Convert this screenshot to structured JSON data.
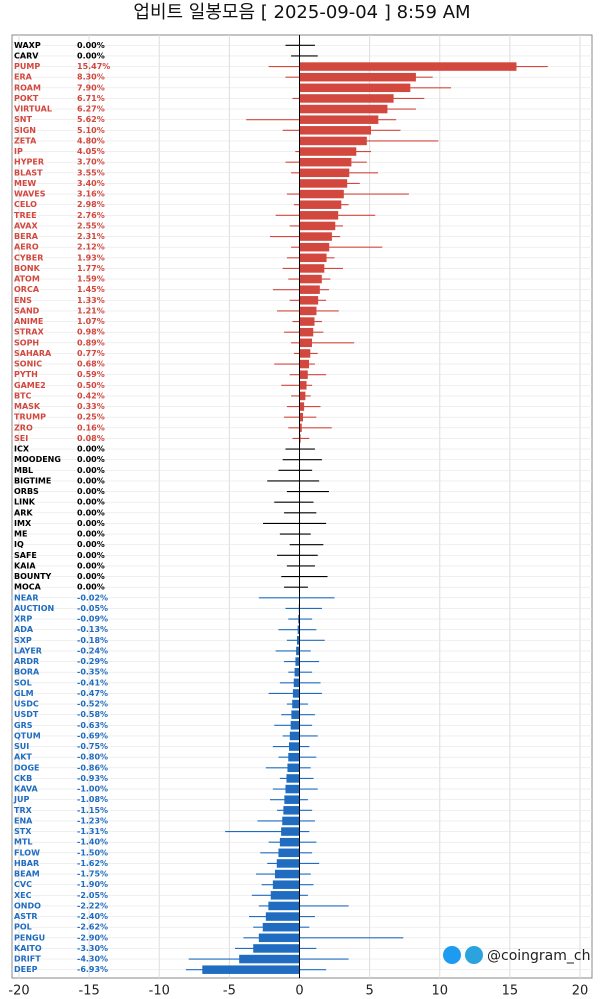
{
  "chart_data": {
    "type": "range-bar",
    "title": "업비트 일봉모음 [ 2025-09-04 ]  8:59 AM",
    "watermark": "@coingram_ch",
    "xlim": [
      -20,
      20
    ],
    "xticks": [
      -20,
      -15,
      -10,
      -5,
      0,
      5,
      10,
      15,
      20
    ],
    "grid": true,
    "colors": {
      "positive": "#d2483f",
      "zero": "#000000",
      "negative": "#1f6cc1"
    },
    "rows": [
      {
        "name": "WAXP",
        "value": 0,
        "value_label": "0.00%",
        "low": -1.0,
        "high": 1.1
      },
      {
        "name": "CARV",
        "value": 0,
        "value_label": "0.00%",
        "low": -0.6,
        "high": 1.3
      },
      {
        "name": "PUMP",
        "value": 15.47,
        "value_label": "15.47%",
        "low": -2.2,
        "high": 17.7
      },
      {
        "name": "ERA",
        "value": 8.3,
        "value_label": "8.30%",
        "low": -1.0,
        "high": 9.5
      },
      {
        "name": "ROAM",
        "value": 7.9,
        "value_label": "7.90%",
        "low": 0.5,
        "high": 10.8
      },
      {
        "name": "POKT",
        "value": 6.71,
        "value_label": "6.71%",
        "low": -0.5,
        "high": 8.9
      },
      {
        "name": "VIRTUAL",
        "value": 6.27,
        "value_label": "6.27%",
        "low": 0.2,
        "high": 8.3
      },
      {
        "name": "SNT",
        "value": 5.62,
        "value_label": "5.62%",
        "low": -3.8,
        "high": 6.9
      },
      {
        "name": "SIGN",
        "value": 5.1,
        "value_label": "5.10%",
        "low": -1.2,
        "high": 7.2
      },
      {
        "name": "ZETA",
        "value": 4.8,
        "value_label": "4.80%",
        "low": 0.1,
        "high": 9.9
      },
      {
        "name": "IP",
        "value": 4.05,
        "value_label": "4.05%",
        "low": -0.3,
        "high": 5.1
      },
      {
        "name": "HYPER",
        "value": 3.7,
        "value_label": "3.70%",
        "low": -1.0,
        "high": 4.8
      },
      {
        "name": "BLAST",
        "value": 3.55,
        "value_label": "3.55%",
        "low": -0.6,
        "high": 5.6
      },
      {
        "name": "MEW",
        "value": 3.4,
        "value_label": "3.40%",
        "low": 0.5,
        "high": 4.3
      },
      {
        "name": "WAVES",
        "value": 3.16,
        "value_label": "3.16%",
        "low": -0.9,
        "high": 7.8
      },
      {
        "name": "CELO",
        "value": 2.98,
        "value_label": "2.98%",
        "low": -0.4,
        "high": 3.5
      },
      {
        "name": "TREE",
        "value": 2.76,
        "value_label": "2.76%",
        "low": -1.7,
        "high": 5.4
      },
      {
        "name": "AVAX",
        "value": 2.55,
        "value_label": "2.55%",
        "low": -0.7,
        "high": 3.1
      },
      {
        "name": "BERA",
        "value": 2.31,
        "value_label": "2.31%",
        "low": -2.1,
        "high": 2.9
      },
      {
        "name": "AERO",
        "value": 2.12,
        "value_label": "2.12%",
        "low": -0.6,
        "high": 5.9
      },
      {
        "name": "CYBER",
        "value": 1.93,
        "value_label": "1.93%",
        "low": -0.9,
        "high": 2.5
      },
      {
        "name": "BONK",
        "value": 1.77,
        "value_label": "1.77%",
        "low": -1.2,
        "high": 3.1
      },
      {
        "name": "ATOM",
        "value": 1.59,
        "value_label": "1.59%",
        "low": -0.8,
        "high": 2.2
      },
      {
        "name": "ORCA",
        "value": 1.45,
        "value_label": "1.45%",
        "low": -1.9,
        "high": 2.1
      },
      {
        "name": "ENS",
        "value": 1.33,
        "value_label": "1.33%",
        "low": -0.7,
        "high": 1.9
      },
      {
        "name": "SAND",
        "value": 1.21,
        "value_label": "1.21%",
        "low": -1.6,
        "high": 2.8
      },
      {
        "name": "ANIME",
        "value": 1.07,
        "value_label": "1.07%",
        "low": -0.5,
        "high": 1.6
      },
      {
        "name": "STRAX",
        "value": 0.98,
        "value_label": "0.98%",
        "low": -1.1,
        "high": 1.7
      },
      {
        "name": "SOPH",
        "value": 0.89,
        "value_label": "0.89%",
        "low": -0.6,
        "high": 3.9
      },
      {
        "name": "SAHARA",
        "value": 0.77,
        "value_label": "0.77%",
        "low": -0.4,
        "high": 1.3
      },
      {
        "name": "SONIC",
        "value": 0.68,
        "value_label": "0.68%",
        "low": -1.8,
        "high": 1.1
      },
      {
        "name": "PYTH",
        "value": 0.59,
        "value_label": "0.59%",
        "low": -0.7,
        "high": 1.9
      },
      {
        "name": "GAME2",
        "value": 0.5,
        "value_label": "0.50%",
        "low": -1.3,
        "high": 0.9
      },
      {
        "name": "BTC",
        "value": 0.42,
        "value_label": "0.42%",
        "low": -0.6,
        "high": 0.8
      },
      {
        "name": "MASK",
        "value": 0.33,
        "value_label": "0.33%",
        "low": -0.9,
        "high": 1.5
      },
      {
        "name": "TRUMP",
        "value": 0.25,
        "value_label": "0.25%",
        "low": -1.1,
        "high": 1.2
      },
      {
        "name": "ZRO",
        "value": 0.16,
        "value_label": "0.16%",
        "low": -0.8,
        "high": 2.3
      },
      {
        "name": "SEI",
        "value": 0.08,
        "value_label": "0.08%",
        "low": -0.5,
        "high": 0.7
      },
      {
        "name": "ICX",
        "value": 0,
        "value_label": "0.00%",
        "low": -1.0,
        "high": 1.1
      },
      {
        "name": "MOODENG",
        "value": 0,
        "value_label": "0.00%",
        "low": -1.2,
        "high": 1.6
      },
      {
        "name": "MBL",
        "value": 0,
        "value_label": "0.00%",
        "low": -1.5,
        "high": 0.9
      },
      {
        "name": "BIGTIME",
        "value": 0,
        "value_label": "0.00%",
        "low": -2.3,
        "high": 1.4
      },
      {
        "name": "ORBS",
        "value": 0,
        "value_label": "0.00%",
        "low": -0.9,
        "high": 2.1
      },
      {
        "name": "LINK",
        "value": 0,
        "value_label": "0.00%",
        "low": -1.8,
        "high": 1.0
      },
      {
        "name": "ARK",
        "value": 0,
        "value_label": "0.00%",
        "low": -1.1,
        "high": 1.2
      },
      {
        "name": "IMX",
        "value": 0,
        "value_label": "0.00%",
        "low": -2.6,
        "high": 1.9
      },
      {
        "name": "ME",
        "value": 0,
        "value_label": "0.00%",
        "low": -1.4,
        "high": 0.8
      },
      {
        "name": "IQ",
        "value": 0,
        "value_label": "0.00%",
        "low": -0.7,
        "high": 1.7
      },
      {
        "name": "SAFE",
        "value": 0,
        "value_label": "0.00%",
        "low": -1.6,
        "high": 1.3
      },
      {
        "name": "KAIA",
        "value": 0,
        "value_label": "0.00%",
        "low": -0.9,
        "high": 1.1
      },
      {
        "name": "BOUNTY",
        "value": 0,
        "value_label": "0.00%",
        "low": -1.3,
        "high": 2.0
      },
      {
        "name": "MOCA",
        "value": 0,
        "value_label": "0.00%",
        "low": -1.1,
        "high": 0.6
      },
      {
        "name": "NEAR",
        "value": -0.02,
        "value_label": "-0.02%",
        "low": -2.9,
        "high": 2.5
      },
      {
        "name": "AUCTION",
        "value": -0.05,
        "value_label": "-0.05%",
        "low": -1.0,
        "high": 1.6
      },
      {
        "name": "XRP",
        "value": -0.09,
        "value_label": "-0.09%",
        "low": -0.8,
        "high": 0.9
      },
      {
        "name": "ADA",
        "value": -0.13,
        "value_label": "-0.13%",
        "low": -1.5,
        "high": 1.2
      },
      {
        "name": "SXP",
        "value": -0.18,
        "value_label": "-0.18%",
        "low": -0.9,
        "high": 1.8
      },
      {
        "name": "LAYER",
        "value": -0.24,
        "value_label": "-0.24%",
        "low": -1.7,
        "high": 0.8
      },
      {
        "name": "ARDR",
        "value": -0.29,
        "value_label": "-0.29%",
        "low": -1.1,
        "high": 1.4
      },
      {
        "name": "BORA",
        "value": -0.35,
        "value_label": "-0.35%",
        "low": -0.8,
        "high": 0.9
      },
      {
        "name": "SOL",
        "value": -0.41,
        "value_label": "-0.41%",
        "low": -1.4,
        "high": 1.5
      },
      {
        "name": "GLM",
        "value": -0.47,
        "value_label": "-0.47%",
        "low": -2.2,
        "high": 1.6
      },
      {
        "name": "USDC",
        "value": -0.52,
        "value_label": "-0.52%",
        "low": -0.9,
        "high": 0.6
      },
      {
        "name": "USDT",
        "value": -0.58,
        "value_label": "-0.58%",
        "low": -1.3,
        "high": 1.1
      },
      {
        "name": "GRS",
        "value": -0.63,
        "value_label": "-0.63%",
        "low": -1.8,
        "high": 0.9
      },
      {
        "name": "QTUM",
        "value": -0.69,
        "value_label": "-0.69%",
        "low": -1.2,
        "high": 1.3
      },
      {
        "name": "SUI",
        "value": -0.75,
        "value_label": "-0.75%",
        "low": -1.9,
        "high": 0.7
      },
      {
        "name": "AKT",
        "value": -0.8,
        "value_label": "-0.80%",
        "low": -1.5,
        "high": 1.2
      },
      {
        "name": "DOGE",
        "value": -0.86,
        "value_label": "-0.86%",
        "low": -2.4,
        "high": 0.8
      },
      {
        "name": "CKB",
        "value": -0.93,
        "value_label": "-0.93%",
        "low": -1.4,
        "high": 1.0
      },
      {
        "name": "KAVA",
        "value": -1.0,
        "value_label": "-1.00%",
        "low": -1.9,
        "high": 1.3
      },
      {
        "name": "JUP",
        "value": -1.08,
        "value_label": "-1.08%",
        "low": -2.1,
        "high": 0.6
      },
      {
        "name": "TRX",
        "value": -1.15,
        "value_label": "-1.15%",
        "low": -1.6,
        "high": 0.9
      },
      {
        "name": "ENA",
        "value": -1.23,
        "value_label": "-1.23%",
        "low": -3.0,
        "high": 1.1
      },
      {
        "name": "STX",
        "value": -1.31,
        "value_label": "-1.31%",
        "low": -5.3,
        "high": 0.7
      },
      {
        "name": "MTL",
        "value": -1.4,
        "value_label": "-1.40%",
        "low": -2.2,
        "high": 1.2
      },
      {
        "name": "FLOW",
        "value": -1.5,
        "value_label": "-1.50%",
        "low": -2.8,
        "high": 0.9
      },
      {
        "name": "HBAR",
        "value": -1.62,
        "value_label": "-1.62%",
        "low": -2.3,
        "high": 1.4
      },
      {
        "name": "BEAM",
        "value": -1.75,
        "value_label": "-1.75%",
        "low": -3.1,
        "high": 0.8
      },
      {
        "name": "CVC",
        "value": -1.9,
        "value_label": "-1.90%",
        "low": -2.7,
        "high": 1.0
      },
      {
        "name": "XEC",
        "value": -2.05,
        "value_label": "-2.05%",
        "low": -3.4,
        "high": 0.6
      },
      {
        "name": "ONDO",
        "value": -2.22,
        "value_label": "-2.22%",
        "low": -2.9,
        "high": 3.5
      },
      {
        "name": "ASTR",
        "value": -2.4,
        "value_label": "-2.40%",
        "low": -3.6,
        "high": 1.1
      },
      {
        "name": "POL",
        "value": -2.62,
        "value_label": "-2.62%",
        "low": -3.3,
        "high": 0.7
      },
      {
        "name": "PENGU",
        "value": -2.9,
        "value_label": "-2.90%",
        "low": -4.0,
        "high": 7.4
      },
      {
        "name": "KAITO",
        "value": -3.3,
        "value_label": "-3.30%",
        "low": -4.6,
        "high": 1.2
      },
      {
        "name": "DRIFT",
        "value": -4.3,
        "value_label": "-4.30%",
        "low": -7.9,
        "high": 3.5
      },
      {
        "name": "DEEP",
        "value": -6.93,
        "value_label": "-6.93%",
        "low": -8.1,
        "high": 1.9
      }
    ]
  }
}
